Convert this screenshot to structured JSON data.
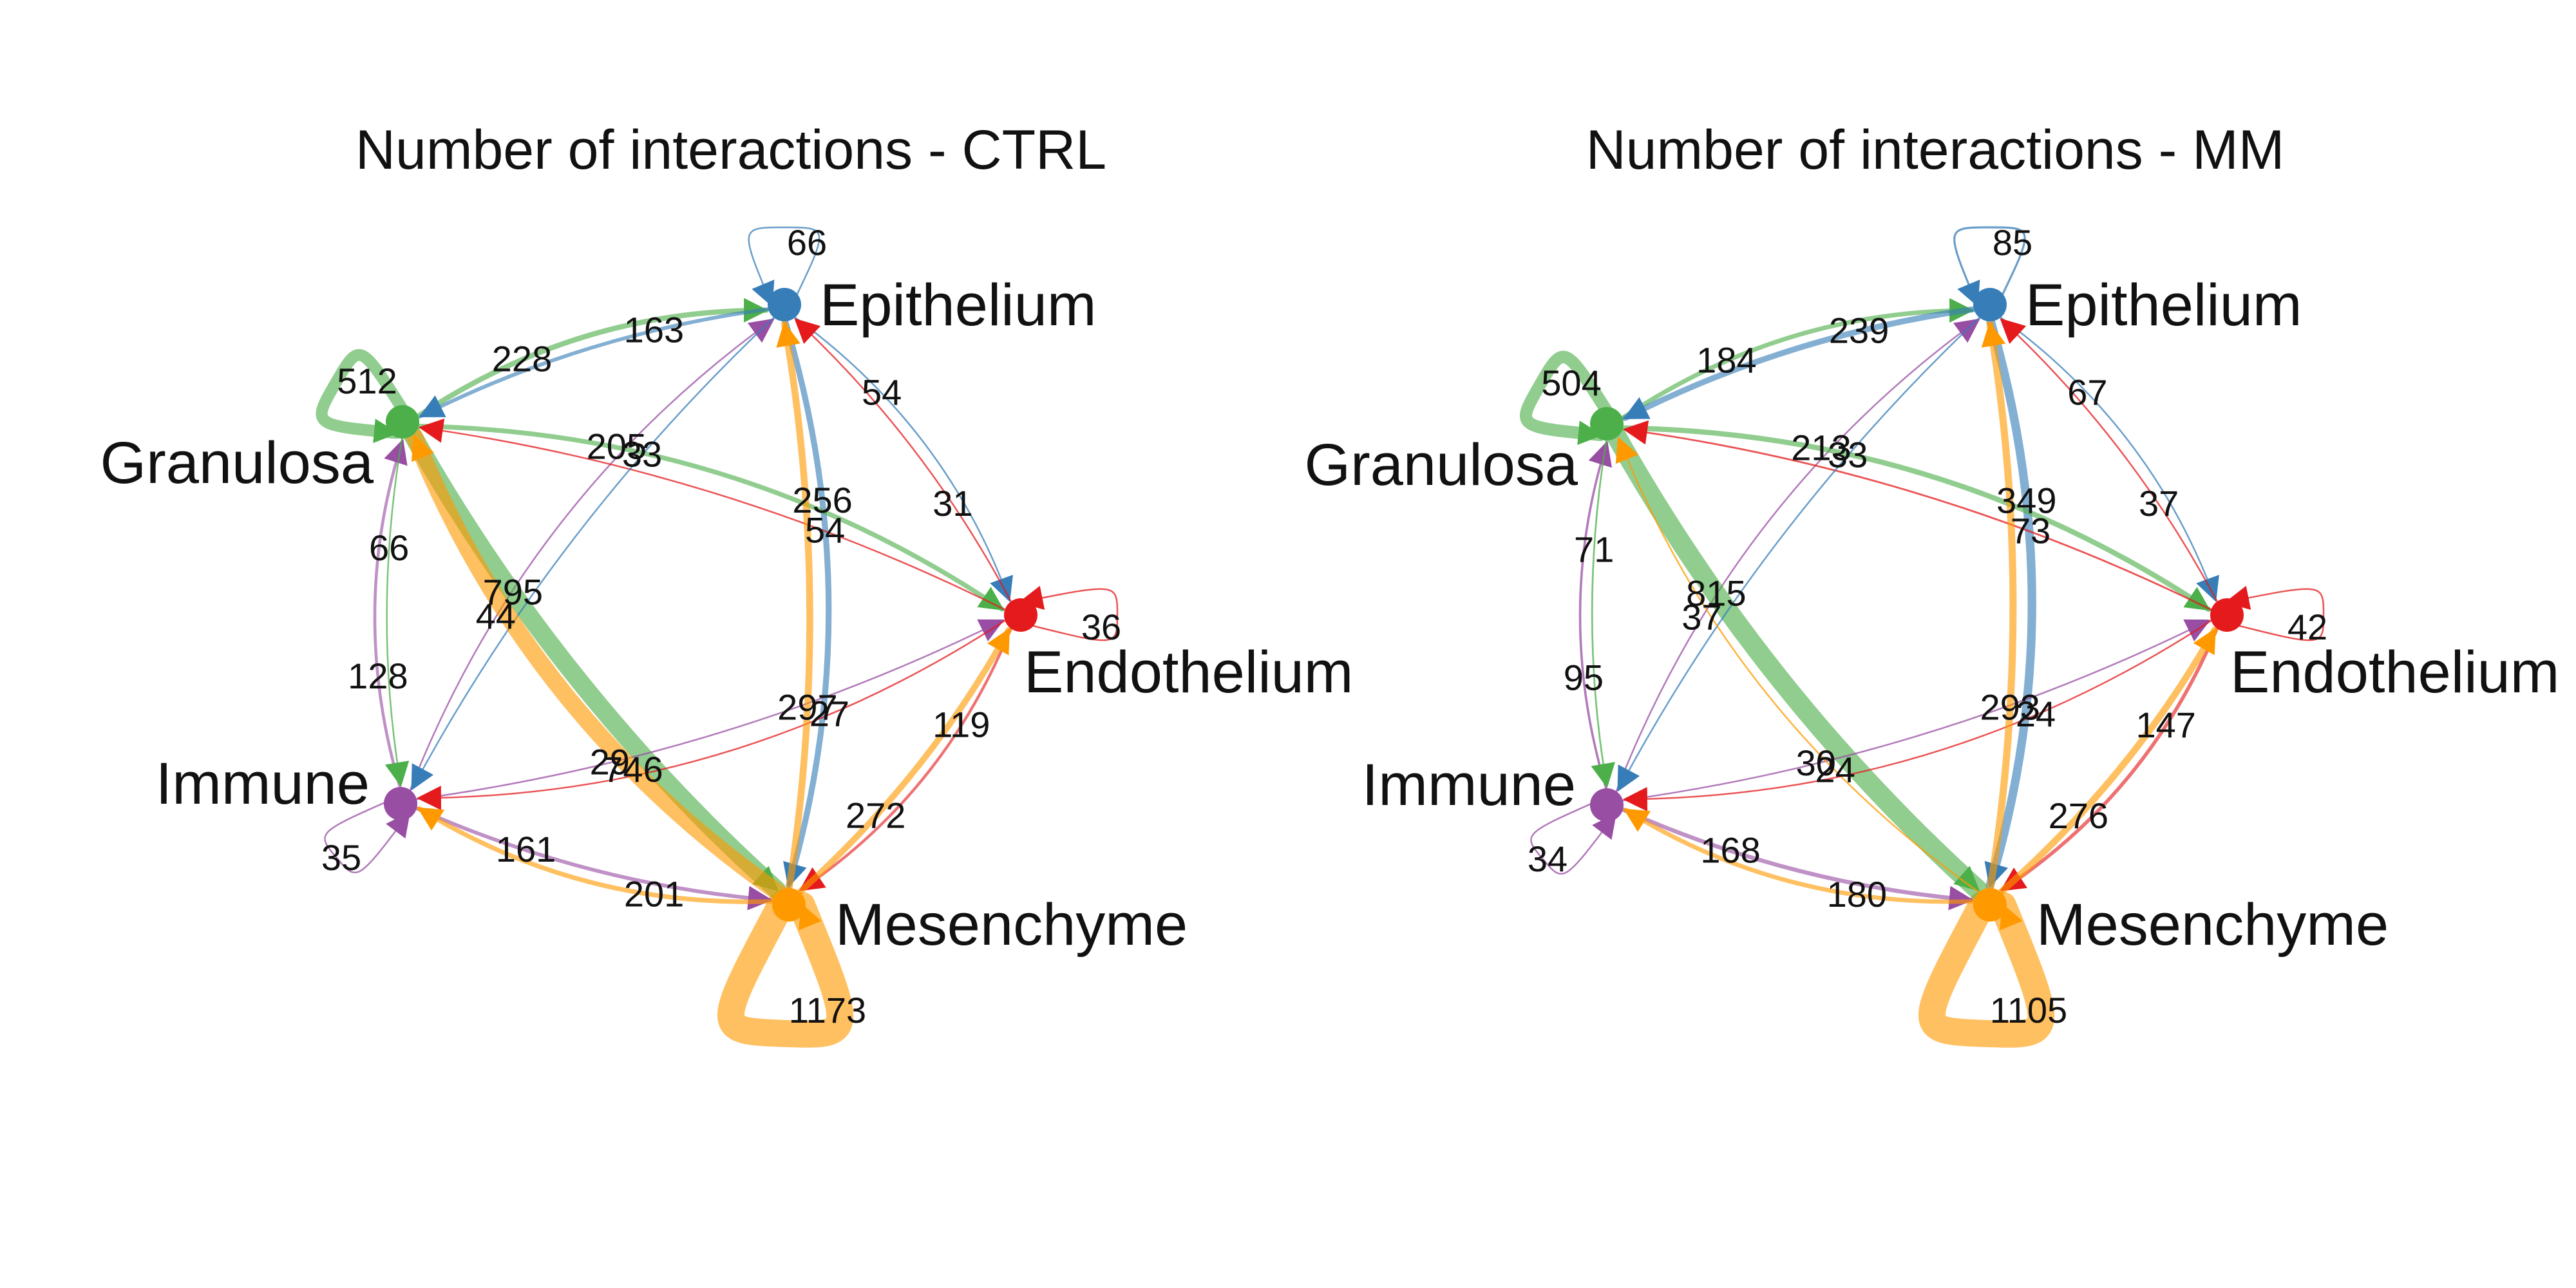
{
  "colors": {
    "Epithelium": "#377EB8",
    "Granulosa": "#4DAF4A",
    "Endothelium": "#E41A1C",
    "Immune": "#984EA3",
    "Mesenchyme": "#FF9900"
  },
  "panels": [
    {
      "title": "Number of interactions - CTRL",
      "node_labels": [
        "Epithelium",
        "Granulosa",
        "Endothelium",
        "Immune",
        "Mesenchyme"
      ],
      "edges": [
        {
          "from": "Epithelium",
          "to": "Epithelium",
          "value": 66
        },
        {
          "from": "Granulosa",
          "to": "Granulosa",
          "value": 512
        },
        {
          "from": "Endothelium",
          "to": "Endothelium",
          "value": 36
        },
        {
          "from": "Immune",
          "to": "Immune",
          "value": 35
        },
        {
          "from": "Mesenchyme",
          "to": "Mesenchyme",
          "value": 1173
        },
        {
          "from": "Granulosa",
          "to": "Epithelium",
          "value": 228
        },
        {
          "from": "Epithelium",
          "to": "Granulosa",
          "value": 163
        },
        {
          "from": "Immune",
          "to": "Epithelium",
          "value": 44
        },
        {
          "from": "Epithelium",
          "to": "Mesenchyme",
          "value": 256
        },
        {
          "from": "Epithelium",
          "to": "Endothelium",
          "value": 54
        },
        {
          "from": "Granulosa",
          "to": "Endothelium",
          "value": 205
        },
        {
          "from": "Endothelium",
          "to": "Epithelium",
          "value": 31
        },
        {
          "from": "Endothelium",
          "to": "Granulosa",
          "value": 54
        },
        {
          "from": "Immune",
          "to": "Granulosa",
          "value": 128
        },
        {
          "from": "Granulosa",
          "to": "Mesenchyme",
          "value": 795
        },
        {
          "from": "Granulosa",
          "to": "Immune",
          "value": 66
        },
        {
          "from": "Epithelium",
          "to": "Immune",
          "value": 33
        },
        {
          "from": "Immune",
          "to": "Endothelium",
          "value": 29
        },
        {
          "from": "Endothelium",
          "to": "Immune",
          "value": 27
        },
        {
          "from": "Endothelium",
          "to": "Mesenchyme",
          "value": 119
        },
        {
          "from": "Immune",
          "to": "Mesenchyme",
          "value": 161
        },
        {
          "from": "Mesenchyme",
          "to": "Immune",
          "value": 201
        },
        {
          "from": "Mesenchyme",
          "to": "Granulosa",
          "value": 746
        },
        {
          "from": "Mesenchyme",
          "to": "Epithelium",
          "value": 297
        },
        {
          "from": "Mesenchyme",
          "to": "Endothelium",
          "value": 272
        }
      ]
    },
    {
      "title": "Number of interactions - MM",
      "node_labels": [
        "Epithelium",
        "Granulosa",
        "Endothelium",
        "Immune",
        "Mesenchyme"
      ],
      "edges": [
        {
          "from": "Epithelium",
          "to": "Epithelium",
          "value": 85
        },
        {
          "from": "Granulosa",
          "to": "Granulosa",
          "value": 504
        },
        {
          "from": "Endothelium",
          "to": "Endothelium",
          "value": 42
        },
        {
          "from": "Immune",
          "to": "Immune",
          "value": 34
        },
        {
          "from": "Mesenchyme",
          "to": "Mesenchyme",
          "value": 1105
        },
        {
          "from": "Granulosa",
          "to": "Epithelium",
          "value": 184
        },
        {
          "from": "Epithelium",
          "to": "Granulosa",
          "value": 239
        },
        {
          "from": "Immune",
          "to": "Epithelium",
          "value": 37
        },
        {
          "from": "Epithelium",
          "to": "Mesenchyme",
          "value": 349
        },
        {
          "from": "Epithelium",
          "to": "Endothelium",
          "value": 67
        },
        {
          "from": "Granulosa",
          "to": "Endothelium",
          "value": 213
        },
        {
          "from": "Endothelium",
          "to": "Epithelium",
          "value": 37
        },
        {
          "from": "Endothelium",
          "to": "Granulosa",
          "value": 73
        },
        {
          "from": "Immune",
          "to": "Granulosa",
          "value": 95
        },
        {
          "from": "Granulosa",
          "to": "Mesenchyme",
          "value": 815
        },
        {
          "from": "Granulosa",
          "to": "Immune",
          "value": 71
        },
        {
          "from": "Epithelium",
          "to": "Immune",
          "value": 33
        },
        {
          "from": "Immune",
          "to": "Endothelium",
          "value": 30
        },
        {
          "from": "Endothelium",
          "to": "Immune",
          "value": 24
        },
        {
          "from": "Endothelium",
          "to": "Mesenchyme",
          "value": 147
        },
        {
          "from": "Immune",
          "to": "Mesenchyme",
          "value": 168
        },
        {
          "from": "Mesenchyme",
          "to": "Immune",
          "value": 180
        },
        {
          "from": "Mesenchyme",
          "to": "Granulosa",
          "value": 24
        },
        {
          "from": "Mesenchyme",
          "to": "Epithelium",
          "value": 293
        },
        {
          "from": "Mesenchyme",
          "to": "Endothelium",
          "value": 276
        }
      ]
    }
  ]
}
